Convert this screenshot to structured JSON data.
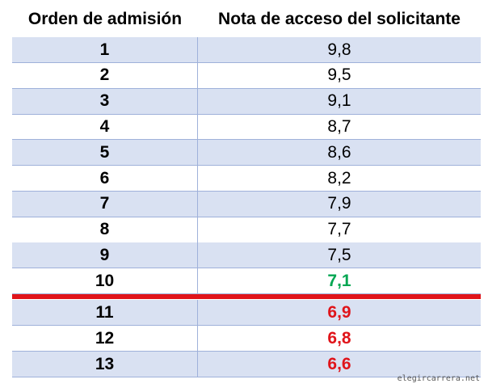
{
  "table": {
    "header": [
      "Orden de admisión",
      "Nota de acceso del solicitante"
    ],
    "rows": [
      [
        "1",
        "9,8"
      ],
      [
        "2",
        "9,5"
      ],
      [
        "3",
        "9,1"
      ],
      [
        "4",
        "8,7"
      ],
      [
        "5",
        "8,6"
      ],
      [
        "6",
        "8,2"
      ],
      [
        "7",
        "7,9"
      ],
      [
        "8",
        "7,7"
      ],
      [
        "9",
        "7,5"
      ],
      [
        "10",
        "7,1"
      ],
      [
        "11",
        "6,9"
      ],
      [
        "12",
        "6,8"
      ],
      [
        "13",
        "6,6"
      ]
    ]
  },
  "watermark": "elegircarrera.net"
}
